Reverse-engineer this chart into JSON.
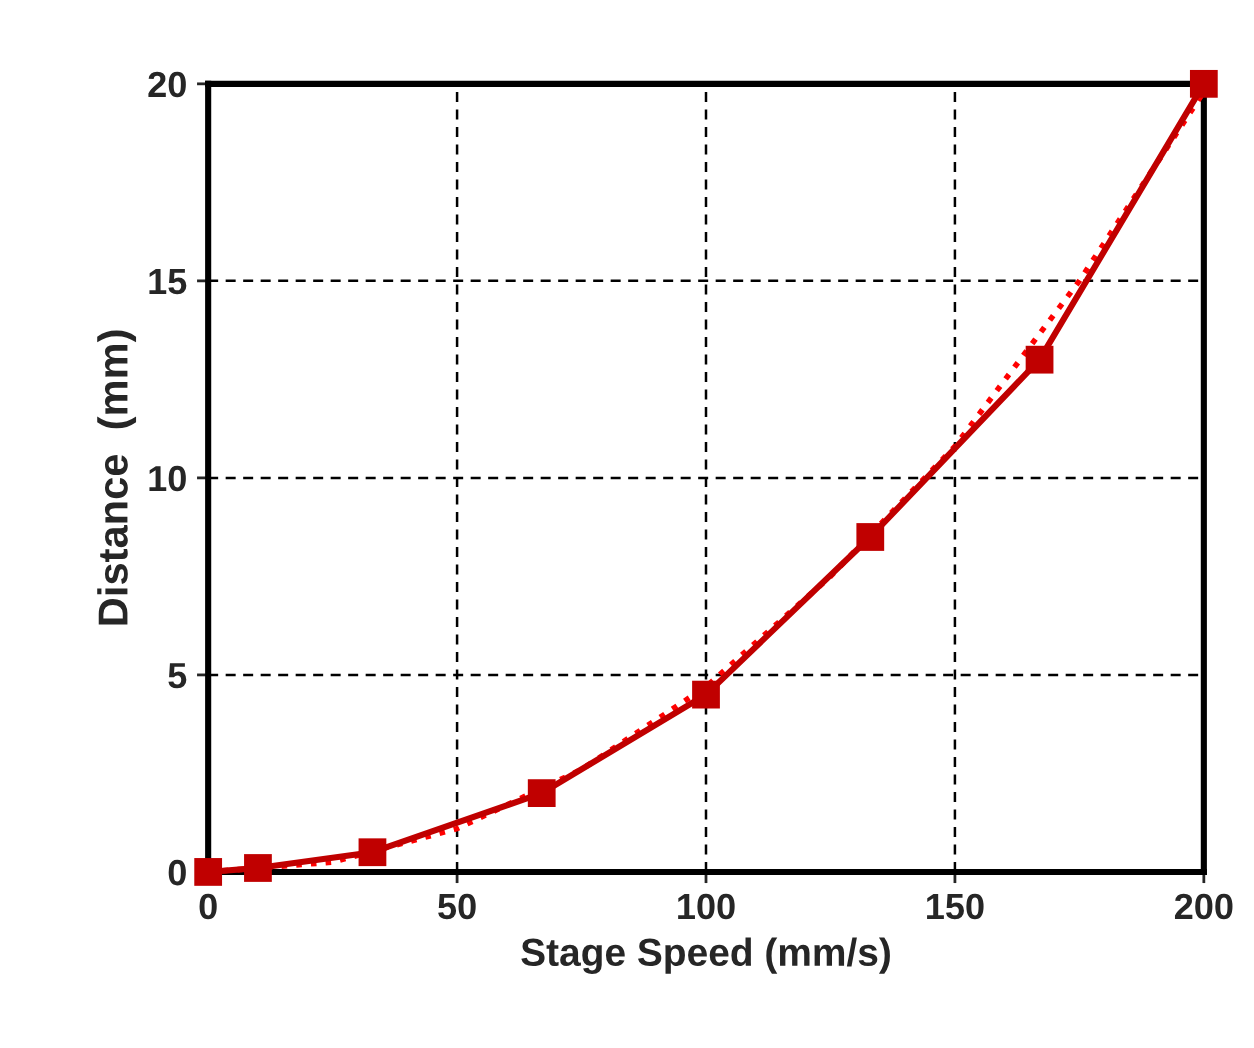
{
  "chart_data": {
    "type": "line",
    "xlabel": "Stage Speed (mm/s)",
    "ylabel": "Distance  (mm)",
    "xlim": [
      0,
      200
    ],
    "xticks": [
      0,
      50,
      100,
      150,
      200
    ],
    "ylim": [
      0,
      20
    ],
    "yticks": [
      0,
      5,
      10,
      15,
      20
    ],
    "grid": true,
    "legend": false,
    "series": [
      {
        "color": "#c00000",
        "marker": "square",
        "line_style": "solid",
        "x": [
          0,
          10,
          33,
          67,
          100,
          133,
          167,
          200
        ],
        "values": [
          0,
          0.1,
          0.5,
          2,
          4.5,
          8.5,
          13,
          20
        ]
      },
      {
        "color": "#ff0000",
        "marker": "none",
        "line_style": "dotted",
        "x": [
          0,
          25,
          50,
          75,
          100,
          125,
          150,
          175,
          200
        ],
        "values": [
          0,
          0.25,
          1.1,
          2.6,
          4.7,
          7.5,
          10.8,
          15,
          19.8
        ]
      }
    ]
  }
}
